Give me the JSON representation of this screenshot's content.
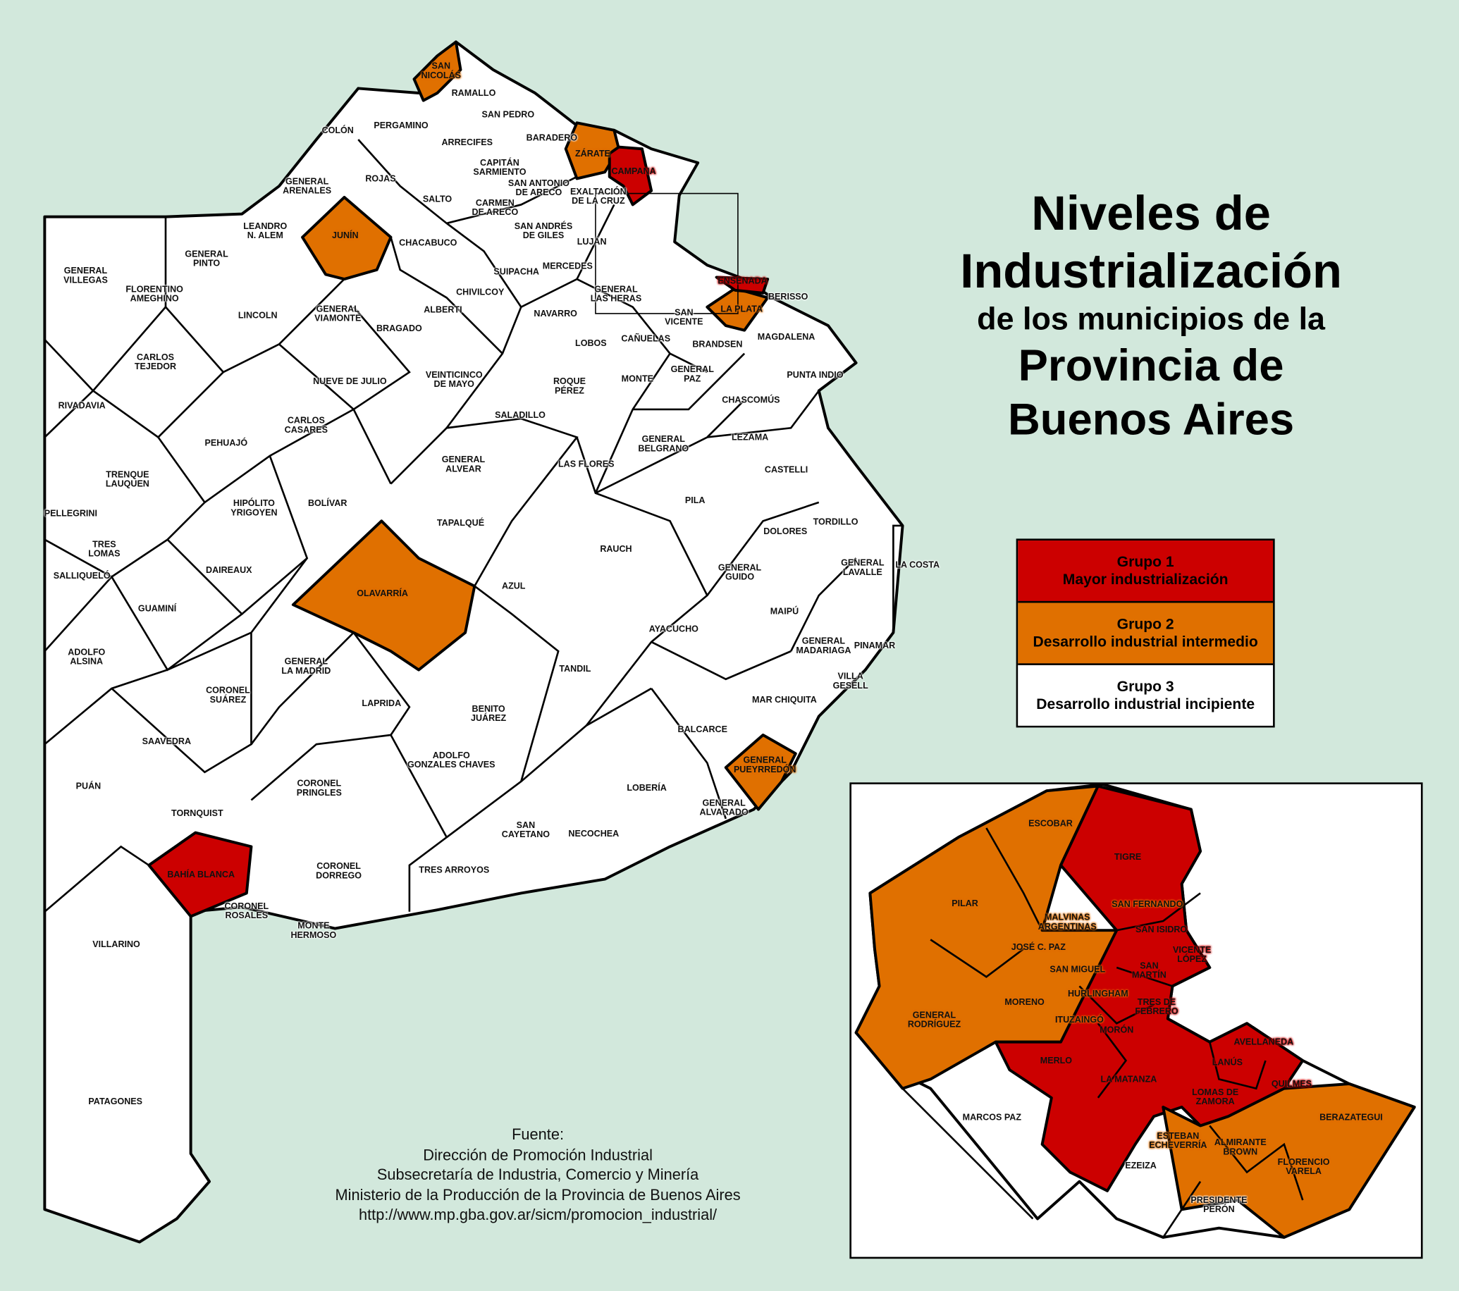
{
  "title": {
    "line1": "Niveles de",
    "line2": "Industrialización",
    "line3": "de los municipios de la",
    "line4": "Provincia de",
    "line5": "Buenos Aires"
  },
  "colors": {
    "background": "#d2e8dc",
    "group1": "#cc0000",
    "group2": "#e07000",
    "group3": "#ffffff"
  },
  "legend": [
    {
      "title": "Grupo 1",
      "subtitle": "Mayor industrialización",
      "color": "#cc0000"
    },
    {
      "title": "Grupo 2",
      "subtitle": "Desarrollo industrial intermedio",
      "color": "#e07000"
    },
    {
      "title": "Grupo 3",
      "subtitle": "Desarrollo industrial incipiente",
      "color": "#ffffff"
    }
  ],
  "source": {
    "label": "Fuente:",
    "line1": "Dirección de Promoción Industrial",
    "line2": "Subsecretaría de Industria, Comercio y Minería",
    "line3": "Ministerio de la Producción de la Provincia de Buenos Aires",
    "line4": "http://www.mp.gba.gov.ar/sicm/promocion_industrial/"
  },
  "map": {
    "municipalities": [
      {
        "name": "SAN\nNICOLÁS",
        "group": 2
      },
      {
        "name": "RAMALLO",
        "group": 3
      },
      {
        "name": "COLÓN",
        "group": 3
      },
      {
        "name": "PERGAMINO",
        "group": 3
      },
      {
        "name": "ARRECIFES",
        "group": 3
      },
      {
        "name": "SAN PEDRO",
        "group": 3
      },
      {
        "name": "BARADERO",
        "group": 3
      },
      {
        "name": "ZÁRATE",
        "group": 2
      },
      {
        "name": "CAMPANA",
        "group": 1
      },
      {
        "name": "GENERAL\nARENALES",
        "group": 3
      },
      {
        "name": "ROJAS",
        "group": 3
      },
      {
        "name": "SALTO",
        "group": 3
      },
      {
        "name": "CAPITÁN\nSARMIENTO",
        "group": 3
      },
      {
        "name": "SAN ANTONIO\nDE ARECO",
        "group": 3
      },
      {
        "name": "EXALTACIÓN\nDE LA CRUZ",
        "group": 3
      },
      {
        "name": "CARMEN\nDE ARECO",
        "group": 3
      },
      {
        "name": "LEANDRO\nN. ALEM",
        "group": 3
      },
      {
        "name": "JUNÍN",
        "group": 2
      },
      {
        "name": "GENERAL\nPINTO",
        "group": 3
      },
      {
        "name": "CHACABUCO",
        "group": 3
      },
      {
        "name": "SAN ANDRÉS\nDE GILES",
        "group": 3
      },
      {
        "name": "LUJÁN",
        "group": 3
      },
      {
        "name": "GENERAL\nVILLEGAS",
        "group": 3
      },
      {
        "name": "FLORENTINO\nAMEGHINO",
        "group": 3
      },
      {
        "name": "SUIPACHA",
        "group": 3
      },
      {
        "name": "MERCEDES",
        "group": 3
      },
      {
        "name": "CHIVILCOY",
        "group": 3
      },
      {
        "name": "GENERAL\nLAS HERAS",
        "group": 3
      },
      {
        "name": "ENSENADA",
        "group": 1
      },
      {
        "name": "LA PLATA",
        "group": 2
      },
      {
        "name": "BERISSO",
        "group": 3
      },
      {
        "name": "LINCOLN",
        "group": 3
      },
      {
        "name": "GENERAL\nVIAMONTE",
        "group": 3
      },
      {
        "name": "ALBERTI",
        "group": 3
      },
      {
        "name": "BRAGADO",
        "group": 3
      },
      {
        "name": "NAVARRO",
        "group": 3
      },
      {
        "name": "SAN\nVICENTE",
        "group": 3
      },
      {
        "name": "CAÑUELAS",
        "group": 3
      },
      {
        "name": "LOBOS",
        "group": 3
      },
      {
        "name": "BRANDSEN",
        "group": 3
      },
      {
        "name": "MAGDALENA",
        "group": 3
      },
      {
        "name": "CARLOS\nTEJEDOR",
        "group": 3
      },
      {
        "name": "NUEVE DE JULIO",
        "group": 3
      },
      {
        "name": "VEINTICINCO\nDE MAYO",
        "group": 3
      },
      {
        "name": "ROQUE\nPÉREZ",
        "group": 3
      },
      {
        "name": "MONTE",
        "group": 3
      },
      {
        "name": "GENERAL\nPAZ",
        "group": 3
      },
      {
        "name": "PUNTA INDIO",
        "group": 3
      },
      {
        "name": "CHASCOMÚS",
        "group": 3
      },
      {
        "name": "RIVADAVIA",
        "group": 3
      },
      {
        "name": "CARLOS\nCASARES",
        "group": 3
      },
      {
        "name": "SALADILLO",
        "group": 3
      },
      {
        "name": "PEHUAJÓ",
        "group": 3
      },
      {
        "name": "GENERAL\nBELGRANO",
        "group": 3
      },
      {
        "name": "LEZAMA",
        "group": 3
      },
      {
        "name": "GENERAL\nALVEAR",
        "group": 3
      },
      {
        "name": "LAS FLORES",
        "group": 3
      },
      {
        "name": "CASTELLI",
        "group": 3
      },
      {
        "name": "TRENQUE\nLAUQUEN",
        "group": 3
      },
      {
        "name": "BOLÍVAR",
        "group": 3
      },
      {
        "name": "HIPÓLITO\nYRIGOYEN",
        "group": 3
      },
      {
        "name": "PILA",
        "group": 3
      },
      {
        "name": "PELLEGRINI",
        "group": 3
      },
      {
        "name": "TAPALQUÉ",
        "group": 3
      },
      {
        "name": "TORDILLO",
        "group": 3
      },
      {
        "name": "DOLORES",
        "group": 3
      },
      {
        "name": "TRES\nLOMAS",
        "group": 3
      },
      {
        "name": "RAUCH",
        "group": 3
      },
      {
        "name": "DAIREAUX",
        "group": 3
      },
      {
        "name": "GENERAL\nGUIDO",
        "group": 3
      },
      {
        "name": "GENERAL\nLAVALLE",
        "group": 3
      },
      {
        "name": "LA COSTA",
        "group": 3
      },
      {
        "name": "SALLIQUELÓ",
        "group": 3
      },
      {
        "name": "AZUL",
        "group": 3
      },
      {
        "name": "OLAVARRÍA",
        "group": 2
      },
      {
        "name": "GUAMINÍ",
        "group": 3
      },
      {
        "name": "MAIPÚ",
        "group": 3
      },
      {
        "name": "AYACUCHO",
        "group": 3
      },
      {
        "name": "GENERAL\nMADARIAGA",
        "group": 3
      },
      {
        "name": "PINAMAR",
        "group": 3
      },
      {
        "name": "ADOLFO\nALSINA",
        "group": 3
      },
      {
        "name": "GENERAL\nLA MADRID",
        "group": 3
      },
      {
        "name": "TANDIL",
        "group": 3
      },
      {
        "name": "VILLA\nGESELL",
        "group": 3
      },
      {
        "name": "CORONEL\nSUÁREZ",
        "group": 3
      },
      {
        "name": "MAR CHIQUITA",
        "group": 3
      },
      {
        "name": "LAPRIDA",
        "group": 3
      },
      {
        "name": "BENITO\nJUÁREZ",
        "group": 3
      },
      {
        "name": "BALCARCE",
        "group": 3
      },
      {
        "name": "SAAVEDRA",
        "group": 3
      },
      {
        "name": "ADOLFO\nGONZALES CHAVES",
        "group": 3
      },
      {
        "name": "GENERAL\nPUEYRREDÓN",
        "group": 2
      },
      {
        "name": "PUÁN",
        "group": 3
      },
      {
        "name": "CORONEL\nPRINGLES",
        "group": 3
      },
      {
        "name": "LOBERÍA",
        "group": 3
      },
      {
        "name": "GENERAL\nALVARADO",
        "group": 3
      },
      {
        "name": "TORNQUIST",
        "group": 3
      },
      {
        "name": "SAN\nCAYETANO",
        "group": 3
      },
      {
        "name": "NECOCHEA",
        "group": 3
      },
      {
        "name": "TRES ARROYOS",
        "group": 3
      },
      {
        "name": "CORONEL\nDORREGO",
        "group": 3
      },
      {
        "name": "BAHÍA BLANCA",
        "group": 1
      },
      {
        "name": "CORONEL\nROSALES",
        "group": 3
      },
      {
        "name": "MONTE\nHERMOSO",
        "group": 3
      },
      {
        "name": "VILLARINO",
        "group": 3
      },
      {
        "name": "PATAGONES",
        "group": 3
      }
    ]
  },
  "inset": {
    "municipalities": [
      {
        "name": "ESCOBAR",
        "group": 2
      },
      {
        "name": "TIGRE",
        "group": 1
      },
      {
        "name": "PILAR",
        "group": 2
      },
      {
        "name": "SAN FERNANDO",
        "group": 2
      },
      {
        "name": "MALVINAS\nARGENTINAS",
        "group": 2
      },
      {
        "name": "SAN ISIDRO",
        "group": 1
      },
      {
        "name": "JOSÉ C. PAZ",
        "group": 2
      },
      {
        "name": "VICENTE\nLÓPEZ",
        "group": 1
      },
      {
        "name": "SAN MIGUEL",
        "group": 2
      },
      {
        "name": "SAN\nMARTÍN",
        "group": 1
      },
      {
        "name": "HURLINGHAM",
        "group": 2
      },
      {
        "name": "MORENO",
        "group": 2
      },
      {
        "name": "TRES DE\nFEBRERO",
        "group": 1
      },
      {
        "name": "GENERAL\nRODRÍGUEZ",
        "group": 2
      },
      {
        "name": "ITUZAINGÓ",
        "group": 2
      },
      {
        "name": "MORÓN",
        "group": 1
      },
      {
        "name": "MERLO",
        "group": 1
      },
      {
        "name": "LA MATANZA",
        "group": 1
      },
      {
        "name": "AVELLANEDA",
        "group": 1
      },
      {
        "name": "LANÚS",
        "group": 1
      },
      {
        "name": "QUILMES",
        "group": 1
      },
      {
        "name": "LOMAS DE\nZAMORA",
        "group": 1
      },
      {
        "name": "MARCOS PAZ",
        "group": 3
      },
      {
        "name": "BERAZATEGUI",
        "group": 2
      },
      {
        "name": "ESTEBAN\nECHEVERRÍA",
        "group": 2
      },
      {
        "name": "ALMIRANTE\nBROWN",
        "group": 2
      },
      {
        "name": "EZEIZA",
        "group": 3
      },
      {
        "name": "FLORENCIO\nVARELA",
        "group": 2
      },
      {
        "name": "PRESIDENTE\nPERÓN",
        "group": 3
      }
    ]
  }
}
